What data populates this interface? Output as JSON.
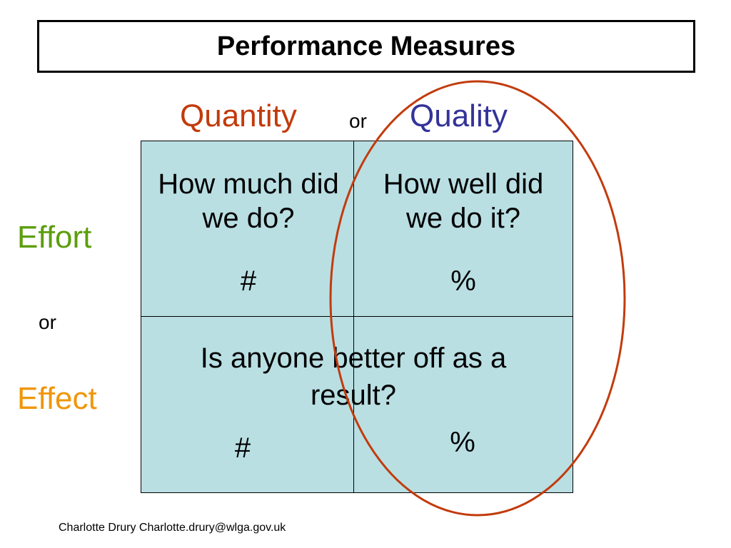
{
  "title": "Performance Measures",
  "columns": {
    "left": "Quantity",
    "or": "or",
    "right": "Quality"
  },
  "rows": {
    "top": "Effort",
    "or": "or",
    "bottom": "Effect"
  },
  "cells": {
    "top_left": {
      "question": "How much did we do?",
      "symbol": "#"
    },
    "top_right": {
      "question": "How well did we do it?",
      "symbol": "%"
    },
    "bottom": {
      "question": "Is anyone better off as a result?",
      "symbol_left": "#",
      "symbol_right": "%"
    }
  },
  "footer": "Charlotte Drury Charlotte.drury@wlga.gov.uk"
}
